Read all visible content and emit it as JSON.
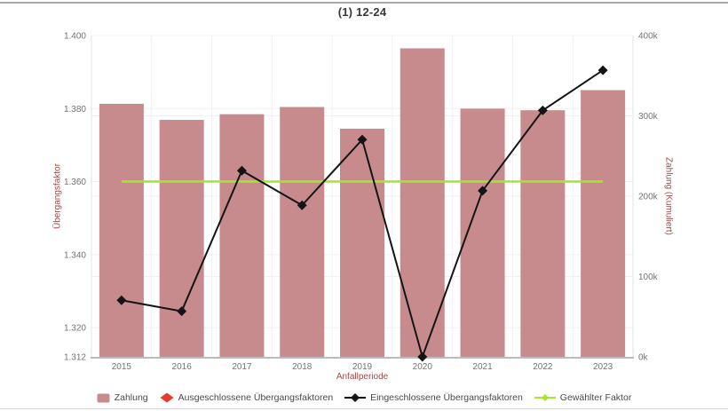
{
  "page": {
    "title": "(1) 12-24"
  },
  "colors": {
    "bar": "#c88b8d",
    "excluded_marker": "#e8392b",
    "included_line": "#141414",
    "chosen_factor_line": "#a7e42e",
    "axis_title": "#9c4b48",
    "tick_label": "#737373",
    "gridline": "#f0f0f0",
    "axis_line": "#bbbbbb",
    "plot_side_border": "#e3e3e3"
  },
  "chart_data": {
    "type": "bar",
    "title": "(1) 12-24",
    "categories": [
      "2015",
      "2016",
      "2017",
      "2018",
      "2019",
      "2020",
      "2021",
      "2022",
      "2023"
    ],
    "xlabel": "Anfallperiode",
    "ylabel_left": "Übergangsfaktor",
    "ylabel_right": "Zahlung (Kumuliert)",
    "ylim_left": [
      1.312,
      1.4
    ],
    "ylim_right_thousands": [
      0,
      400
    ],
    "yticks_left_labels": [
      "1.400",
      "1.380",
      "1.360",
      "1.340",
      "1.320",
      "1.312"
    ],
    "yticks_left_values": [
      1.4,
      1.38,
      1.36,
      1.34,
      1.32,
      1.312
    ],
    "yticks_right_labels": [
      "400k",
      "300k",
      "200k",
      "100k",
      "0k"
    ],
    "yticks_right_values": [
      400,
      300,
      200,
      100,
      0
    ],
    "grid": true,
    "legend_position": "bottom",
    "series": [
      {
        "name": "Zahlung",
        "type": "bar",
        "axis": "right",
        "icon": "bar-swatch-icon",
        "color": "#c88b8d",
        "values_thousands": [
          315,
          295,
          302,
          311,
          284,
          384,
          309,
          307,
          332
        ]
      },
      {
        "name": "Ausgeschlossene Übergangsfaktoren",
        "type": "scatter",
        "axis": "left",
        "icon": "red-diamond-icon",
        "color": "#e8392b",
        "values": []
      },
      {
        "name": "Eingeschlossene Übergangsfaktoren",
        "type": "line",
        "axis": "left",
        "icon": "black-line-diamond-icon",
        "color": "#141414",
        "values": [
          1.3275,
          1.3245,
          1.363,
          1.3535,
          1.3715,
          1.312,
          1.3575,
          1.3795,
          1.3905
        ]
      },
      {
        "name": "Gewählter Faktor",
        "type": "line",
        "axis": "left",
        "icon": "green-line-diamond-icon",
        "color": "#a7e42e",
        "constant_value": 1.36
      }
    ]
  }
}
